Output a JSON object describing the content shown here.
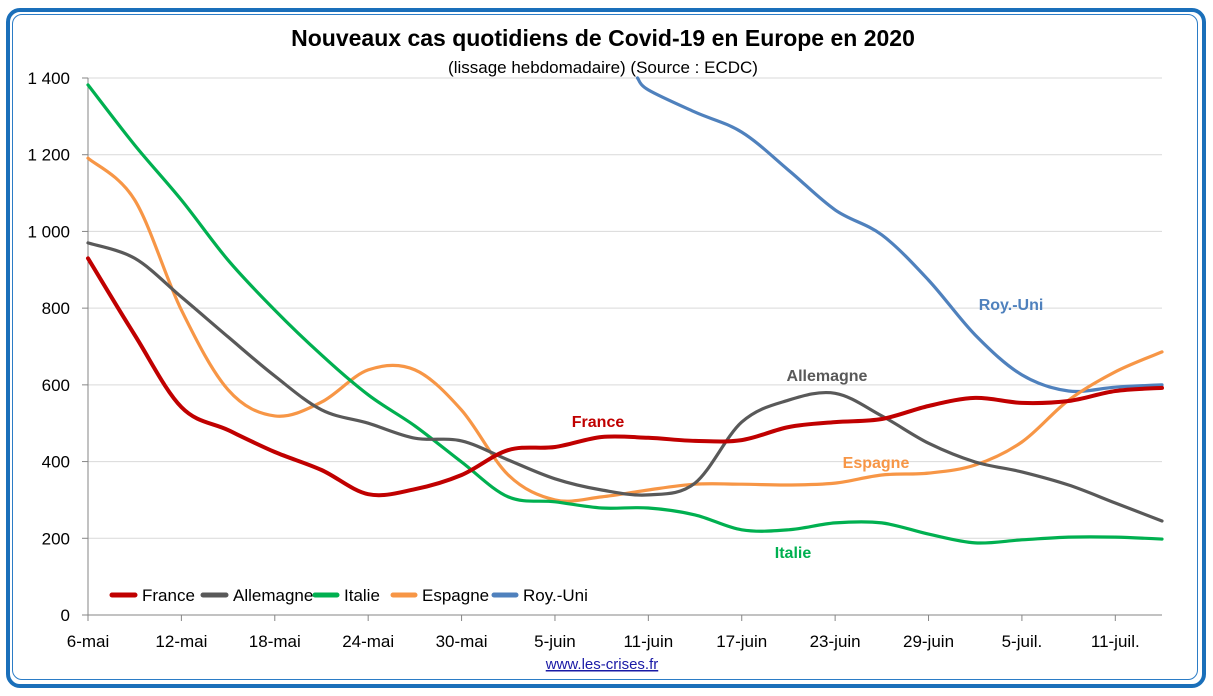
{
  "chart_data": {
    "type": "line",
    "title": "Nouveaux cas quotidiens de Covid-19 en Europe en 2020",
    "subtitle": "(lissage hebdomadaire) (Source : ECDC)",
    "xlabel": "",
    "ylabel": "",
    "ylim": [
      0,
      1400
    ],
    "yticks": [
      0,
      200,
      400,
      600,
      800,
      1000,
      1200,
      1400
    ],
    "ytick_labels": [
      "0",
      "200",
      "400",
      "600",
      "800",
      "1 000",
      "1 200",
      "1 400"
    ],
    "x_unit": "days since 6-mai",
    "xlim": [
      0,
      69
    ],
    "xticks": [
      0,
      6,
      12,
      18,
      24,
      30,
      36,
      42,
      48,
      54,
      60,
      66
    ],
    "xtick_labels": [
      "6-mai",
      "12-mai",
      "18-mai",
      "24-mai",
      "30-mai",
      "5-juin",
      "11-juin",
      "17-juin",
      "23-juin",
      "29-juin",
      "5-juil.",
      "11-juil."
    ],
    "grid": true,
    "legend_position": "bottom-left",
    "x": [
      0,
      3,
      6,
      9,
      12,
      15,
      18,
      21,
      24,
      27,
      30,
      33,
      36,
      39,
      42,
      45,
      48,
      51,
      54,
      57,
      60,
      63,
      66,
      69
    ],
    "series": [
      {
        "name": "France",
        "color": "#c00000",
        "label": "France",
        "values": [
          930,
          730,
          542,
          482,
          425,
          378,
          315,
          328,
          365,
          430,
          438,
          464,
          462,
          454,
          456,
          490,
          503,
          511,
          545,
          566,
          553,
          558,
          584,
          592
        ]
      },
      {
        "name": "Allemagne",
        "color": "#595959",
        "label": "Allemagne",
        "values": [
          970,
          930,
          829,
          725,
          623,
          535,
          500,
          461,
          454,
          404,
          355,
          326,
          313,
          344,
          503,
          560,
          578,
          519,
          448,
          399,
          373,
          339,
          292,
          245
        ]
      },
      {
        "name": "Italie",
        "color": "#00b050",
        "label": "Italie",
        "values": [
          1382,
          1225,
          1082,
          925,
          795,
          678,
          574,
          493,
          399,
          308,
          295,
          279,
          279,
          261,
          222,
          222,
          240,
          240,
          211,
          188,
          196,
          203,
          203,
          198
        ]
      },
      {
        "name": "Espagne",
        "color": "#f79646",
        "label": "Espagne",
        "values": [
          1191,
          1082,
          795,
          587,
          519,
          555,
          639,
          639,
          534,
          365,
          300,
          308,
          326,
          341,
          341,
          339,
          344,
          365,
          370,
          391,
          451,
          560,
          634,
          686
        ]
      },
      {
        "name": "Roy.-Uni",
        "color": "#4f81bd",
        "label": "Roy.-Uni",
        "values": [
          null,
          null,
          null,
          null,
          null,
          null,
          null,
          null,
          null,
          null,
          null,
          null,
          1369,
          1311,
          1259,
          1160,
          1056,
          991,
          873,
          730,
          626,
          584,
          594,
          600
        ],
        "first_point": {
          "x": 35.3,
          "y": 1400
        }
      }
    ],
    "source_link": "www.les-crises.fr"
  }
}
